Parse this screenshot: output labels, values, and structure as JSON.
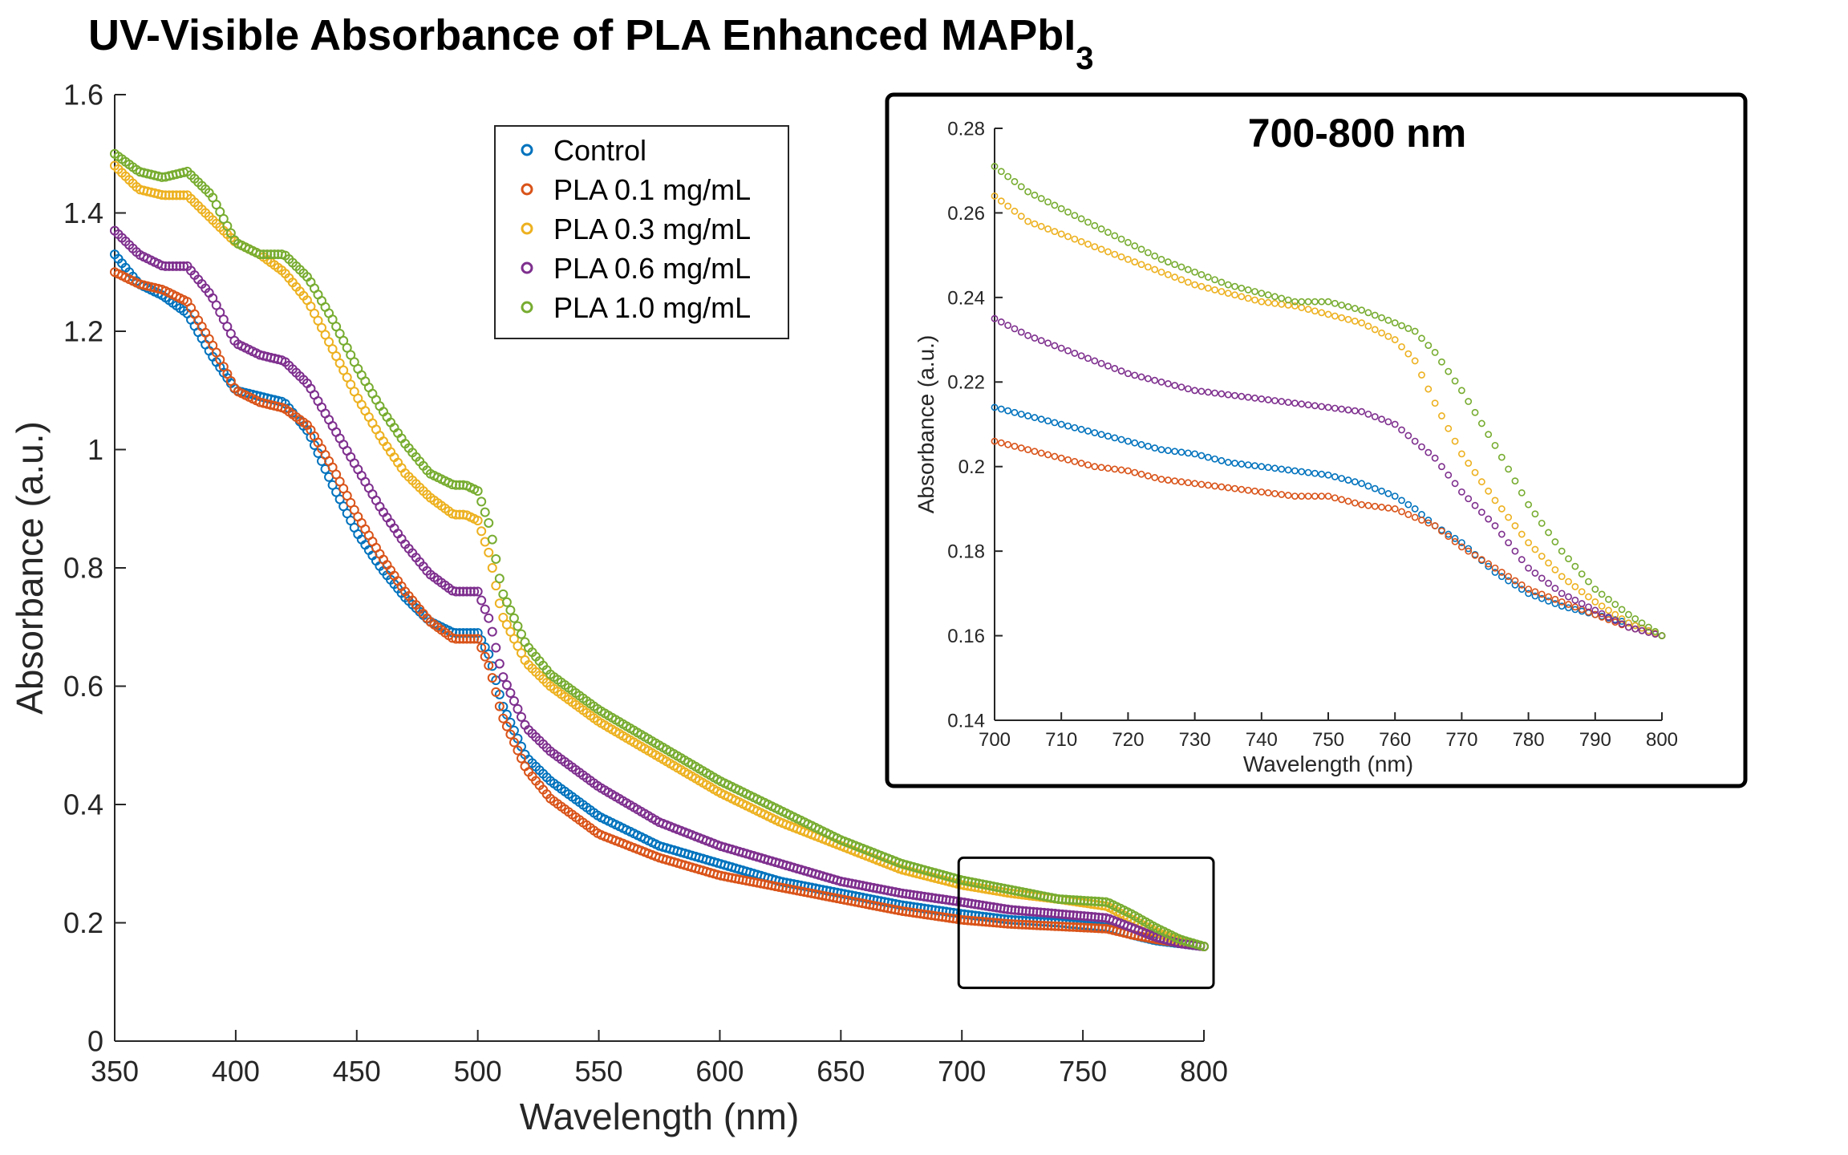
{
  "chart_data": [
    {
      "type": "scatter",
      "title": "UV-Visible Absorbance of PLA Enhanced MAPbI",
      "title_subscript": "3",
      "xlabel": "Wavelength (nm)",
      "ylabel": "Absorbance (a.u.)",
      "xlim": [
        350,
        800
      ],
      "ylim": [
        0,
        1.6
      ],
      "xticks": [
        350,
        400,
        450,
        500,
        550,
        600,
        650,
        700,
        750,
        800
      ],
      "yticks": [
        0,
        0.2,
        0.4,
        0.6,
        0.8,
        1,
        1.2,
        1.4,
        1.6
      ],
      "x_tick_labels": [
        "350",
        "400",
        "450",
        "500",
        "550",
        "600",
        "650",
        "700",
        "750",
        "800"
      ],
      "y_tick_labels": [
        "0",
        "0.2",
        "0.4",
        "0.6",
        "0.8",
        "1",
        "1.2",
        "1.4",
        "1.6"
      ],
      "grid": false,
      "legend_position": "top-center",
      "marker": "open-circle",
      "zoom_box": {
        "x": [
          700,
          800
        ],
        "y": [
          0.09,
          0.31
        ]
      },
      "series": [
        {
          "name": "Control",
          "color": "#0072BD",
          "x": [
            350,
            360,
            370,
            380,
            390,
            400,
            410,
            420,
            430,
            440,
            450,
            460,
            470,
            480,
            490,
            495,
            500,
            505,
            510,
            520,
            530,
            550,
            575,
            600,
            625,
            650,
            675,
            700,
            720,
            740,
            760,
            770,
            780,
            790,
            800
          ],
          "y": [
            1.33,
            1.28,
            1.26,
            1.23,
            1.16,
            1.1,
            1.09,
            1.08,
            1.03,
            0.94,
            0.86,
            0.8,
            0.75,
            0.71,
            0.69,
            0.69,
            0.69,
            0.65,
            0.57,
            0.48,
            0.44,
            0.38,
            0.33,
            0.3,
            0.27,
            0.25,
            0.23,
            0.215,
            0.205,
            0.2,
            0.192,
            0.18,
            0.17,
            0.165,
            0.16
          ]
        },
        {
          "name": "PLA 0.1 mg/mL",
          "color": "#D95319",
          "x": [
            350,
            360,
            370,
            380,
            390,
            400,
            410,
            420,
            430,
            440,
            450,
            460,
            470,
            480,
            490,
            495,
            500,
            505,
            510,
            520,
            530,
            550,
            575,
            600,
            625,
            650,
            675,
            700,
            720,
            740,
            760,
            770,
            780,
            790,
            800
          ],
          "y": [
            1.3,
            1.28,
            1.27,
            1.25,
            1.18,
            1.1,
            1.08,
            1.07,
            1.04,
            0.97,
            0.89,
            0.82,
            0.76,
            0.71,
            0.68,
            0.68,
            0.68,
            0.63,
            0.55,
            0.46,
            0.41,
            0.35,
            0.31,
            0.28,
            0.26,
            0.24,
            0.22,
            0.205,
            0.198,
            0.194,
            0.19,
            0.18,
            0.172,
            0.166,
            0.16
          ]
        },
        {
          "name": "PLA 0.3 mg/mL",
          "color": "#EDB120",
          "x": [
            350,
            360,
            370,
            380,
            390,
            400,
            410,
            420,
            430,
            440,
            450,
            460,
            470,
            480,
            490,
            495,
            500,
            505,
            510,
            520,
            530,
            550,
            575,
            600,
            625,
            650,
            675,
            700,
            720,
            740,
            760,
            770,
            780,
            790,
            800
          ],
          "y": [
            1.48,
            1.44,
            1.43,
            1.43,
            1.39,
            1.35,
            1.33,
            1.3,
            1.25,
            1.17,
            1.09,
            1.02,
            0.96,
            0.92,
            0.89,
            0.89,
            0.88,
            0.82,
            0.72,
            0.64,
            0.6,
            0.54,
            0.48,
            0.42,
            0.37,
            0.33,
            0.29,
            0.264,
            0.25,
            0.24,
            0.228,
            0.206,
            0.185,
            0.168,
            0.16
          ]
        },
        {
          "name": "PLA 0.6 mg/mL",
          "color": "#7E2F8E",
          "x": [
            350,
            360,
            370,
            380,
            390,
            400,
            410,
            420,
            430,
            440,
            450,
            460,
            470,
            480,
            490,
            495,
            500,
            505,
            510,
            520,
            530,
            550,
            575,
            600,
            625,
            650,
            675,
            700,
            720,
            740,
            760,
            770,
            780,
            790,
            800
          ],
          "y": [
            1.37,
            1.33,
            1.31,
            1.31,
            1.26,
            1.18,
            1.16,
            1.15,
            1.11,
            1.04,
            0.97,
            0.9,
            0.84,
            0.79,
            0.76,
            0.76,
            0.76,
            0.71,
            0.62,
            0.53,
            0.49,
            0.43,
            0.37,
            0.33,
            0.3,
            0.27,
            0.25,
            0.235,
            0.222,
            0.215,
            0.208,
            0.192,
            0.176,
            0.165,
            0.16
          ]
        },
        {
          "name": "PLA 1.0 mg/mL",
          "color": "#77AC30",
          "x": [
            350,
            360,
            370,
            380,
            390,
            400,
            410,
            420,
            430,
            440,
            450,
            460,
            470,
            480,
            490,
            495,
            500,
            505,
            510,
            520,
            530,
            550,
            575,
            600,
            625,
            650,
            675,
            700,
            720,
            740,
            760,
            770,
            780,
            790,
            800
          ],
          "y": [
            1.5,
            1.47,
            1.46,
            1.47,
            1.43,
            1.35,
            1.33,
            1.33,
            1.29,
            1.22,
            1.14,
            1.07,
            1.01,
            0.96,
            0.94,
            0.94,
            0.93,
            0.87,
            0.76,
            0.67,
            0.62,
            0.56,
            0.5,
            0.44,
            0.39,
            0.34,
            0.3,
            0.272,
            0.256,
            0.24,
            0.235,
            0.215,
            0.192,
            0.172,
            0.16
          ]
        }
      ]
    },
    {
      "type": "scatter",
      "title": "700-800 nm",
      "xlabel": "Wavelength (nm)",
      "ylabel": "Absorbance (a.u.)",
      "xlim": [
        700,
        800
      ],
      "ylim": [
        0.14,
        0.28
      ],
      "xticks": [
        700,
        710,
        720,
        730,
        740,
        750,
        760,
        770,
        780,
        790,
        800
      ],
      "yticks": [
        0.14,
        0.16,
        0.18,
        0.2,
        0.22,
        0.24,
        0.26,
        0.28
      ],
      "x_tick_labels": [
        "700",
        "710",
        "720",
        "730",
        "740",
        "750",
        "760",
        "770",
        "780",
        "790",
        "800"
      ],
      "y_tick_labels": [
        "0.14",
        "0.16",
        "0.18",
        "0.2",
        "0.22",
        "0.24",
        "0.26",
        "0.28"
      ],
      "grid": false,
      "legend_position": "none",
      "marker": "open-circle",
      "series": [
        {
          "name": "Control",
          "color": "#0072BD",
          "x": [
            700,
            705,
            710,
            715,
            720,
            725,
            730,
            735,
            740,
            745,
            750,
            755,
            760,
            763,
            766,
            770,
            775,
            780,
            785,
            790,
            795,
            800
          ],
          "y": [
            0.214,
            0.212,
            0.21,
            0.208,
            0.206,
            0.204,
            0.203,
            0.201,
            0.2,
            0.199,
            0.198,
            0.196,
            0.193,
            0.19,
            0.186,
            0.182,
            0.175,
            0.17,
            0.167,
            0.165,
            0.163,
            0.16
          ]
        },
        {
          "name": "PLA 0.1 mg/mL",
          "color": "#D95319",
          "x": [
            700,
            705,
            710,
            715,
            720,
            725,
            730,
            735,
            740,
            745,
            750,
            755,
            760,
            763,
            766,
            770,
            775,
            780,
            785,
            790,
            795,
            800
          ],
          "y": [
            0.206,
            0.204,
            0.202,
            0.2,
            0.199,
            0.197,
            0.196,
            0.195,
            0.194,
            0.193,
            0.193,
            0.191,
            0.19,
            0.188,
            0.186,
            0.181,
            0.176,
            0.171,
            0.168,
            0.165,
            0.162,
            0.16
          ]
        },
        {
          "name": "PLA 0.3 mg/mL",
          "color": "#EDB120",
          "x": [
            700,
            705,
            710,
            715,
            720,
            725,
            730,
            735,
            740,
            745,
            750,
            755,
            760,
            763,
            766,
            770,
            775,
            780,
            785,
            790,
            795,
            800
          ],
          "y": [
            0.264,
            0.258,
            0.255,
            0.252,
            0.249,
            0.246,
            0.243,
            0.241,
            0.239,
            0.238,
            0.236,
            0.234,
            0.23,
            0.225,
            0.215,
            0.203,
            0.192,
            0.182,
            0.174,
            0.168,
            0.163,
            0.16
          ]
        },
        {
          "name": "PLA 0.6 mg/mL",
          "color": "#7E2F8E",
          "x": [
            700,
            705,
            710,
            715,
            720,
            725,
            730,
            735,
            740,
            745,
            750,
            755,
            760,
            763,
            766,
            770,
            775,
            780,
            785,
            790,
            795,
            800
          ],
          "y": [
            0.235,
            0.231,
            0.228,
            0.225,
            0.222,
            0.22,
            0.218,
            0.217,
            0.216,
            0.215,
            0.214,
            0.213,
            0.21,
            0.206,
            0.202,
            0.194,
            0.186,
            0.176,
            0.17,
            0.166,
            0.162,
            0.16
          ]
        },
        {
          "name": "PLA 1.0 mg/mL",
          "color": "#77AC30",
          "x": [
            700,
            705,
            710,
            715,
            720,
            725,
            730,
            735,
            740,
            745,
            750,
            755,
            760,
            763,
            766,
            770,
            775,
            780,
            785,
            790,
            795,
            800
          ],
          "y": [
            0.271,
            0.265,
            0.261,
            0.257,
            0.253,
            0.249,
            0.246,
            0.243,
            0.241,
            0.239,
            0.239,
            0.237,
            0.234,
            0.232,
            0.227,
            0.218,
            0.205,
            0.191,
            0.18,
            0.171,
            0.165,
            0.16
          ]
        }
      ]
    }
  ]
}
